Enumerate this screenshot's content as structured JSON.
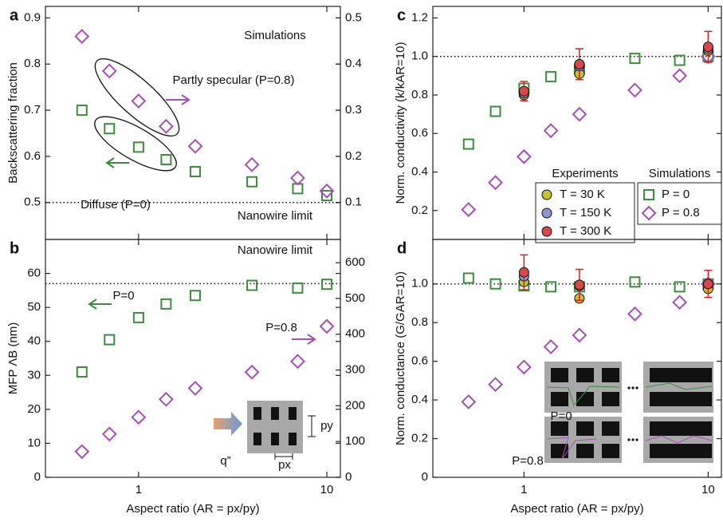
{
  "chart_data": [
    {
      "type": "scatter",
      "label": "a",
      "y_label": "Backscattering fraction",
      "x_log": true,
      "xlim": [
        0.32,
        11.8
      ],
      "xticks": [
        1,
        10
      ],
      "xtick_labels": false,
      "ylim": [
        0.42,
        0.925
      ],
      "yticks": [
        0.5,
        0.6,
        0.7,
        0.8,
        0.9
      ],
      "y2lim": [
        0.02,
        0.525
      ],
      "y2ticks": [
        0.1,
        0.2,
        0.3,
        0.4,
        0.5
      ],
      "hline": 0.5,
      "x": [
        0.5,
        0.7,
        1,
        1.4,
        2,
        4,
        7,
        10
      ],
      "series": [
        {
          "marker": "square",
          "color": "#3c8c3c",
          "values": [
            0.7,
            0.66,
            0.62,
            0.593,
            0.567,
            0.545,
            0.53,
            0.515
          ]
        },
        {
          "marker": "diamond",
          "color": "#a64fb4",
          "axis": "y2",
          "values": [
            0.46,
            0.385,
            0.32,
            0.265,
            0.222,
            0.182,
            0.153,
            0.125
          ]
        }
      ],
      "annotations": [
        {
          "text": "Simulations",
          "color": "#111111"
        },
        {
          "text": "Partly specular (P=0.8)",
          "color": "#a64fb4"
        },
        {
          "text": "Diffuse (P=0)",
          "color": "#3c8c3c"
        },
        {
          "text": "Nanowire limit",
          "color": "#111111"
        }
      ]
    },
    {
      "type": "scatter",
      "label": "b",
      "y_label": "MFP ΛB (nm)",
      "x_label": "Aspect ratio (AR = px/py)",
      "x_log": true,
      "xlim": [
        0.32,
        11.8
      ],
      "xticks": [
        1,
        10
      ],
      "ylim": [
        0,
        70
      ],
      "yticks": [
        0,
        10,
        20,
        30,
        40,
        50,
        60
      ],
      "y2lim": [
        0,
        665
      ],
      "y2ticks": [
        0,
        100,
        200,
        300,
        400,
        500,
        600
      ],
      "hline": 57,
      "x": [
        0.5,
        0.7,
        1,
        1.4,
        2,
        4,
        7,
        10
      ],
      "series": [
        {
          "marker": "square",
          "color": "#3c8c3c",
          "values": [
            31,
            40.5,
            47,
            51,
            53.5,
            56.5,
            55.7,
            56.8
          ]
        },
        {
          "marker": "diamond",
          "color": "#a64fb4",
          "axis": "y2",
          "values": [
            72,
            121,
            168,
            218,
            249,
            294,
            324,
            422
          ]
        }
      ],
      "annotations": [
        {
          "text": "Nanowire limit",
          "color": "#111111"
        },
        {
          "text": "P=0",
          "color": "#3c8c3c"
        },
        {
          "text": "P=0.8",
          "color": "#a64fb4"
        },
        {
          "text": "q”",
          "color": "#111111"
        },
        {
          "text": "py",
          "color": "#111111"
        },
        {
          "text": "px",
          "color": "#111111"
        }
      ]
    },
    {
      "type": "scatter",
      "label": "c",
      "y_label": "Norm. conductivity (k/kAR=10)",
      "x_log": true,
      "xlim": [
        0.32,
        11.8
      ],
      "xticks": [
        1,
        10
      ],
      "xtick_labels": false,
      "ylim": [
        0.05,
        1.26
      ],
      "yticks": [
        0.2,
        0.4,
        0.6,
        0.8,
        {
          "value": 1,
          "label": "1.0"
        },
        1.2
      ],
      "hline": 1,
      "x": [
        0.5,
        0.7,
        1,
        1.4,
        2,
        4,
        7,
        10
      ],
      "legend_titles": [
        "Experiments",
        "Simulations"
      ],
      "series": [
        {
          "name": "P = 0",
          "legend_group": 1,
          "marker": "square",
          "color": "#3c8c3c",
          "values": [
            0.545,
            0.715,
            0.835,
            0.895,
            0.935,
            0.99,
            0.98,
            1.0
          ]
        },
        {
          "name": "P = 0.8",
          "legend_group": 1,
          "marker": "diamond",
          "color": "#a64fb4",
          "values": [
            0.205,
            0.345,
            0.48,
            0.615,
            0.7,
            0.825,
            0.9,
            1.0
          ]
        },
        {
          "name": "T = 30 K",
          "legend_group": 0,
          "marker": "circle",
          "color": "#c8c032",
          "x": [
            1,
            2,
            10
          ],
          "values": [
            0.8,
            0.91,
            1.03
          ]
        },
        {
          "name": "T = 150 K",
          "legend_group": 0,
          "marker": "circle",
          "color": "#8b98d0",
          "x": [
            1,
            2,
            10
          ],
          "values": [
            0.81,
            0.95,
            1.04
          ]
        },
        {
          "name": "T = 300 K",
          "legend_group": 0,
          "marker": "circle",
          "color": "#d84848",
          "x": [
            1,
            2,
            10
          ],
          "values": [
            0.82,
            0.96,
            1.05
          ],
          "errors": [
            0.05,
            0.08,
            0.08
          ]
        }
      ],
      "annotations": []
    },
    {
      "type": "scatter",
      "label": "d",
      "y_label": "Norm. conductance (G/GAR=10)",
      "x_label": "Aspect ratio (AR = px/py)",
      "x_log": true,
      "xlim": [
        0.32,
        11.8
      ],
      "xticks": [
        1,
        10
      ],
      "ylim": [
        0,
        1.23
      ],
      "yticks": [
        0,
        0.2,
        0.4,
        0.6,
        0.8,
        {
          "value": 1,
          "label": "1.0"
        }
      ],
      "hline": 1,
      "x": [
        0.5,
        0.7,
        1,
        1.4,
        2,
        4,
        7,
        10
      ],
      "series": [
        {
          "marker": "square",
          "color": "#3c8c3c",
          "values": [
            1.03,
            1.0,
            0.99,
            0.985,
            0.985,
            1.01,
            0.985,
            1.0
          ]
        },
        {
          "marker": "diamond",
          "color": "#a64fb4",
          "values": [
            0.39,
            0.48,
            0.57,
            0.675,
            0.735,
            0.845,
            0.905,
            1.0
          ]
        },
        {
          "marker": "circle",
          "color": "#c8c032",
          "x": [
            1,
            2,
            10
          ],
          "values": [
            1.01,
            0.925,
            0.975
          ]
        },
        {
          "marker": "circle",
          "color": "#8b98d0",
          "x": [
            1,
            2,
            10
          ],
          "values": [
            1.04,
            0.99,
            1.0
          ]
        },
        {
          "marker": "circle",
          "color": "#d84848",
          "x": [
            1,
            2,
            10
          ],
          "values": [
            1.06,
            0.995,
            1.0
          ],
          "errors": [
            0.09,
            0.08,
            0.07
          ]
        }
      ],
      "annotations": [
        {
          "text": "P=0",
          "color": "#3c8c3c"
        },
        {
          "text": "P=0.8",
          "color": "#a64fb4"
        }
      ]
    }
  ]
}
